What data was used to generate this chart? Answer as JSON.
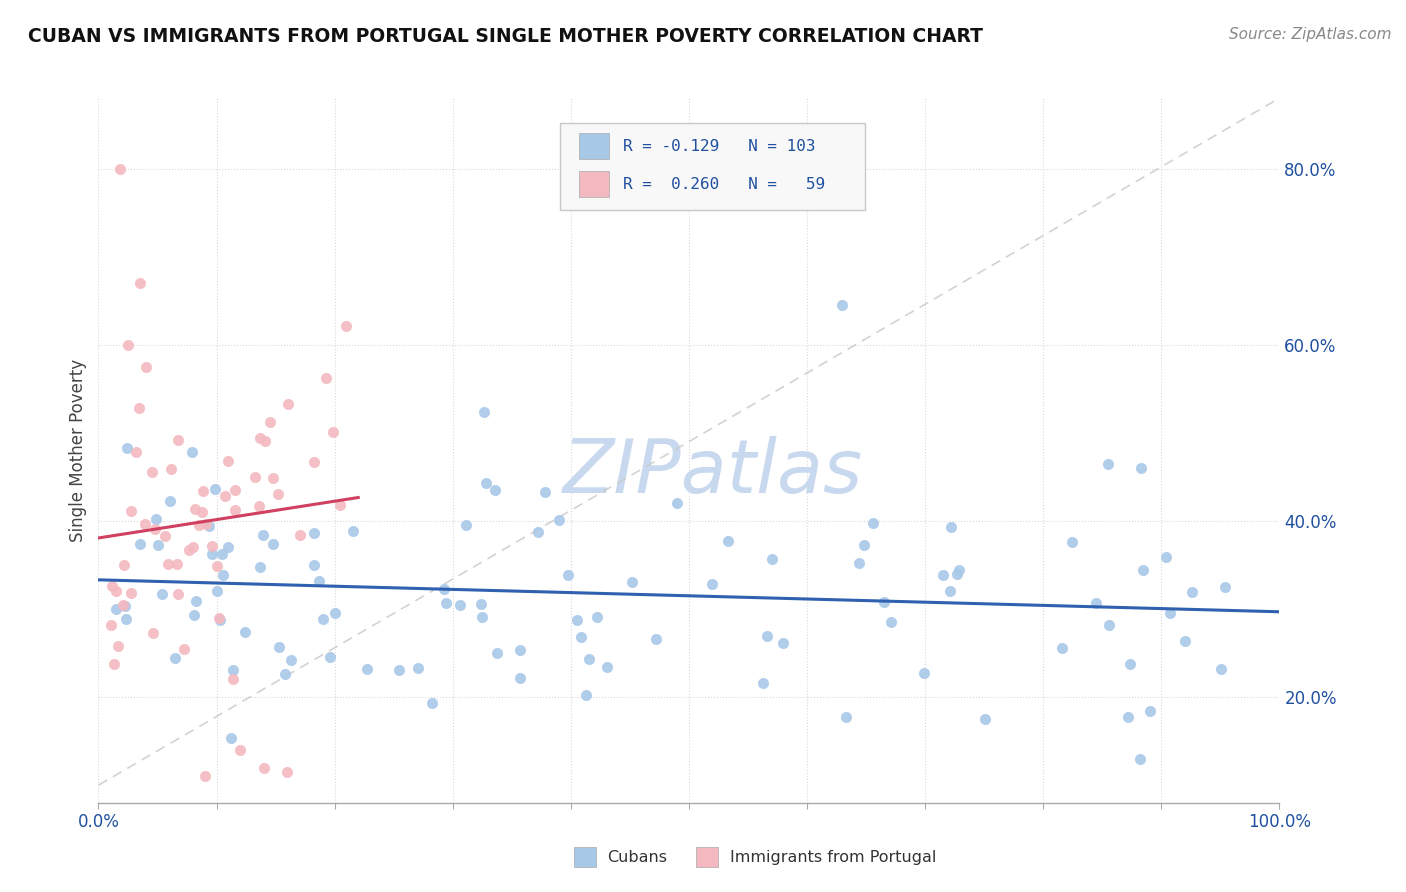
{
  "title": "CUBAN VS IMMIGRANTS FROM PORTUGAL SINGLE MOTHER POVERTY CORRELATION CHART",
  "source": "Source: ZipAtlas.com",
  "ylabel": "Single Mother Poverty",
  "xlim": [
    0,
    1
  ],
  "ylim": [
    0.08,
    0.88
  ],
  "ytick_values": [
    0.2,
    0.4,
    0.6,
    0.8
  ],
  "ytick_labels": [
    "20.0%",
    "40.0%",
    "60.0%",
    "80.0%"
  ],
  "cubans_R": -0.129,
  "cubans_N": 103,
  "portugal_R": 0.26,
  "portugal_N": 59,
  "blue_color": "#a8c8e8",
  "pink_color": "#f4b8c0",
  "blue_line_color": "#3060b0",
  "pink_line_color": "#d04060",
  "ref_line_color": "#c8c8c8",
  "watermark_color": "#c8d8ee",
  "background_color": "#ffffff",
  "grid_color": "#d8d8d8",
  "legend_box_color": "#f8f8f8",
  "legend_border_color": "#c8c8c8",
  "stat_text_color": "#2050a0",
  "title_color": "#111111",
  "source_color": "#888888",
  "axis_label_color": "#2050a0",
  "ylabel_color": "#444444"
}
